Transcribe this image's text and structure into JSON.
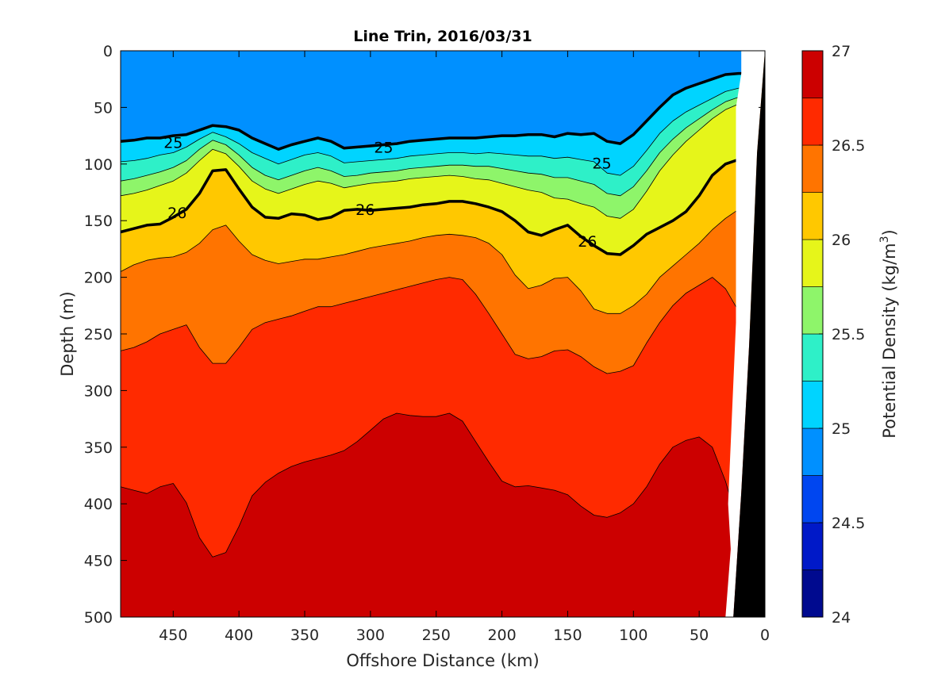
{
  "chart_data": {
    "type": "heatmap",
    "subtype": "filled-contour-section",
    "title": "Line Trin, 2016/03/31",
    "xlabel": "Offshore Distance (km)",
    "ylabel": "Depth (m)",
    "xlim": [
      490,
      0
    ],
    "x_reversed": true,
    "ylim": [
      0,
      500
    ],
    "y_reversed": true,
    "x_ticks": [
      450,
      400,
      350,
      300,
      250,
      200,
      150,
      100,
      50,
      0
    ],
    "y_ticks": [
      0,
      50,
      100,
      150,
      200,
      250,
      300,
      350,
      400,
      450,
      500
    ],
    "colorbar": {
      "label_prefix": "Potential Density (kg/m",
      "label_sup": "3",
      "label_suffix": ")",
      "range": [
        24,
        27
      ],
      "tick_values": [
        24,
        24.5,
        25,
        25.5,
        26,
        26.5,
        27
      ],
      "tick_labels": [
        "24",
        "24.5",
        "25",
        "25.5",
        "26",
        "26.5",
        "27"
      ],
      "levels": [
        24.0,
        24.25,
        24.5,
        24.75,
        25.0,
        25.25,
        25.5,
        25.75,
        26.0,
        26.25,
        26.5,
        26.75,
        27.0
      ],
      "colors": [
        "#000a8f",
        "#0019c8",
        "#0046f0",
        "#0090ff",
        "#00d4ff",
        "#2ef0c8",
        "#8ef56a",
        "#e6f51a",
        "#ffc800",
        "#ff7400",
        "#ff2a00",
        "#cc0000"
      ]
    },
    "labeled_contours": [
      {
        "level": 25,
        "label": "25",
        "label_positions": [
          {
            "x": 450,
            "y": 81
          },
          {
            "x": 290,
            "y": 85
          },
          {
            "x": 124,
            "y": 99
          }
        ]
      },
      {
        "level": 26,
        "label": "26",
        "label_positions": [
          {
            "x": 447,
            "y": 143
          },
          {
            "x": 304,
            "y": 140
          },
          {
            "x": 135,
            "y": 168
          }
        ]
      }
    ],
    "interfaces": {
      "x": [
        490,
        480,
        470,
        460,
        450,
        440,
        430,
        420,
        410,
        400,
        390,
        380,
        370,
        360,
        350,
        340,
        330,
        320,
        310,
        300,
        290,
        280,
        270,
        260,
        250,
        240,
        230,
        220,
        210,
        200,
        190,
        180,
        170,
        160,
        150,
        140,
        130,
        120,
        110,
        100,
        90,
        80,
        70,
        60,
        50,
        40,
        30,
        20,
        10,
        0
      ],
      "depths": [
        [
          0,
          0,
          0,
          0,
          0,
          0,
          0,
          0,
          0,
          0,
          0,
          0,
          0,
          0,
          0,
          0,
          0,
          0,
          0,
          0,
          0,
          0,
          0,
          0,
          0,
          0,
          0,
          0,
          0,
          0,
          0,
          0,
          0,
          0,
          0,
          0,
          0,
          0,
          0,
          0,
          0,
          0,
          0,
          0,
          0,
          0,
          0,
          0,
          0,
          0
        ],
        [
          0,
          0,
          0,
          0,
          0,
          0,
          0,
          0,
          0,
          0,
          0,
          0,
          0,
          0,
          0,
          0,
          0,
          0,
          0,
          0,
          0,
          0,
          0,
          0,
          0,
          0,
          0,
          0,
          0,
          0,
          0,
          0,
          0,
          0,
          0,
          0,
          0,
          0,
          0,
          0,
          0,
          0,
          0,
          0,
          0,
          0,
          0,
          0,
          0,
          0
        ],
        [
          0,
          0,
          0,
          0,
          0,
          0,
          0,
          0,
          0,
          0,
          0,
          0,
          0,
          0,
          0,
          0,
          0,
          0,
          0,
          0,
          0,
          0,
          0,
          0,
          0,
          0,
          0,
          0,
          0,
          0,
          0,
          0,
          0,
          0,
          0,
          0,
          0,
          0,
          0,
          0,
          0,
          0,
          0,
          0,
          0,
          0,
          0,
          0,
          0,
          0
        ],
        [
          0,
          0,
          0,
          0,
          0,
          0,
          0,
          0,
          0,
          0,
          0,
          0,
          0,
          0,
          0,
          0,
          0,
          0,
          0,
          0,
          0,
          0,
          0,
          0,
          0,
          0,
          0,
          0,
          0,
          0,
          0,
          0,
          0,
          0,
          0,
          0,
          0,
          0,
          0,
          0,
          0,
          0,
          0,
          0,
          0,
          0,
          0,
          0,
          0,
          0
        ],
        [
          80,
          79,
          77,
          77,
          75,
          74,
          70,
          66,
          67,
          70,
          77,
          82,
          87,
          83,
          80,
          77,
          80,
          86,
          85,
          84,
          83,
          82,
          80,
          79,
          78,
          77,
          77,
          77,
          76,
          75,
          75,
          74,
          74,
          76,
          73,
          74,
          73,
          80,
          82,
          74,
          62,
          50,
          39,
          33,
          29,
          25,
          21,
          20,
          20,
          0
        ],
        [
          98,
          97,
          95,
          92,
          90,
          85,
          78,
          72,
          76,
          82,
          90,
          95,
          100,
          96,
          92,
          90,
          93,
          99,
          98,
          97,
          96,
          95,
          93,
          92,
          91,
          90,
          90,
          91,
          90,
          91,
          92,
          93,
          93,
          95,
          94,
          96,
          98,
          108,
          110,
          102,
          88,
          73,
          62,
          54,
          48,
          42,
          36,
          33,
          32,
          0
        ],
        [
          115,
          113,
          110,
          107,
          103,
          97,
          87,
          79,
          83,
          92,
          103,
          110,
          114,
          110,
          106,
          103,
          106,
          111,
          110,
          108,
          107,
          106,
          104,
          103,
          102,
          101,
          101,
          102,
          102,
          104,
          106,
          108,
          109,
          112,
          112,
          115,
          118,
          126,
          128,
          120,
          106,
          90,
          78,
          68,
          60,
          52,
          45,
          41,
          40,
          0
        ],
        [
          128,
          126,
          123,
          119,
          115,
          108,
          97,
          87,
          91,
          102,
          115,
          122,
          126,
          122,
          118,
          115,
          117,
          121,
          119,
          117,
          116,
          115,
          113,
          112,
          111,
          110,
          111,
          113,
          114,
          117,
          120,
          123,
          125,
          130,
          131,
          135,
          138,
          146,
          148,
          140,
          124,
          106,
          92,
          80,
          70,
          60,
          52,
          47,
          46,
          0
        ],
        [
          160,
          157,
          154,
          153,
          147,
          140,
          126,
          106,
          105,
          122,
          138,
          147,
          148,
          144,
          145,
          149,
          147,
          141,
          140,
          141,
          140,
          139,
          138,
          136,
          135,
          133,
          133,
          135,
          138,
          142,
          150,
          160,
          163,
          158,
          154,
          164,
          172,
          179,
          180,
          172,
          162,
          156,
          150,
          142,
          128,
          110,
          100,
          96,
          95,
          0
        ],
        [
          195,
          189,
          185,
          183,
          182,
          178,
          170,
          158,
          154,
          168,
          180,
          185,
          188,
          186,
          184,
          184,
          182,
          180,
          177,
          174,
          172,
          170,
          168,
          165,
          163,
          162,
          163,
          165,
          170,
          180,
          198,
          210,
          207,
          201,
          200,
          212,
          228,
          232,
          232,
          225,
          215,
          200,
          190,
          180,
          170,
          158,
          148,
          140,
          138,
          0
        ],
        [
          265,
          262,
          257,
          250,
          246,
          242,
          262,
          276,
          276,
          262,
          246,
          240,
          237,
          234,
          230,
          226,
          226,
          223,
          220,
          217,
          214,
          211,
          208,
          205,
          202,
          200,
          202,
          215,
          232,
          250,
          268,
          272,
          270,
          265,
          264,
          270,
          279,
          285,
          283,
          278,
          258,
          240,
          225,
          214,
          207,
          200,
          210,
          230,
          250,
          0
        ],
        [
          385,
          388,
          391,
          385,
          382,
          399,
          430,
          447,
          443,
          420,
          393,
          381,
          373,
          367,
          363,
          360,
          357,
          353,
          345,
          335,
          325,
          320,
          322,
          323,
          323,
          320,
          327,
          345,
          363,
          380,
          385,
          384,
          386,
          388,
          392,
          402,
          410,
          412,
          408,
          400,
          385,
          365,
          350,
          344,
          341,
          350,
          380,
          420,
          460,
          0
        ],
        [
          500,
          500,
          500,
          500,
          500,
          500,
          500,
          500,
          500,
          500,
          500,
          500,
          500,
          500,
          500,
          500,
          500,
          500,
          500,
          500,
          500,
          500,
          500,
          500,
          500,
          500,
          500,
          500,
          500,
          500,
          500,
          500,
          500,
          500,
          500,
          500,
          500,
          500,
          500,
          500,
          500,
          500,
          500,
          500,
          500,
          500,
          500,
          500,
          500,
          500
        ]
      ],
      "comment_units": "depth in m for each density level boundary, level index i separates color band i-1 and i"
    },
    "bathymetry": {
      "fill_color": "#000000",
      "points": [
        {
          "x": 0,
          "y": 0
        },
        {
          "x": 6,
          "y": 90
        },
        {
          "x": 12,
          "y": 260
        },
        {
          "x": 18,
          "y": 390
        },
        {
          "x": 24,
          "y": 500
        },
        {
          "x": 0,
          "y": 500
        }
      ]
    },
    "no_data_wedge": {
      "fill_color": "#ffffff",
      "points": [
        {
          "x": 18,
          "y": 0
        },
        {
          "x": 0,
          "y": 0
        },
        {
          "x": 6,
          "y": 90
        },
        {
          "x": 12,
          "y": 260
        },
        {
          "x": 18,
          "y": 390
        },
        {
          "x": 24,
          "y": 500
        },
        {
          "x": 30,
          "y": 500
        },
        {
          "x": 28,
          "y": 470
        },
        {
          "x": 26,
          "y": 440
        },
        {
          "x": 28,
          "y": 400
        },
        {
          "x": 22,
          "y": 240
        },
        {
          "x": 22,
          "y": 50
        },
        {
          "x": 18,
          "y": 20
        }
      ]
    }
  }
}
